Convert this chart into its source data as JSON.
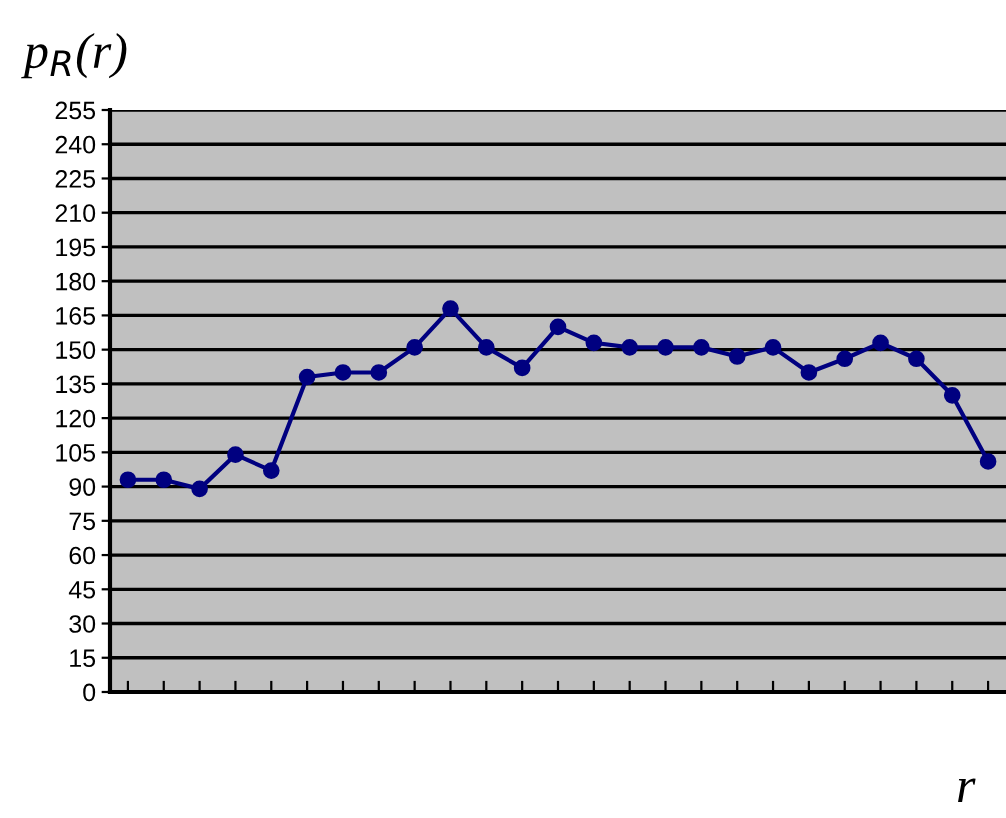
{
  "chart_data": {
    "type": "line",
    "title": "p$_{R}$(r)",
    "xlabel": "r",
    "categories": [
      null,
      null,
      null,
      null,
      null,
      null,
      null,
      null,
      null,
      null,
      null,
      null,
      null,
      null,
      null,
      null,
      null,
      null,
      null,
      null,
      null,
      null,
      null,
      null,
      null
    ],
    "series": [
      {
        "color": "#000080",
        "values": [
          93,
          93,
          89,
          104,
          97,
          138,
          140,
          140,
          151,
          168,
          151,
          142,
          160,
          153,
          151,
          151,
          151,
          147,
          151,
          140,
          146,
          153,
          146,
          130,
          101
        ]
      }
    ],
    "ylim": [
      0,
      255
    ],
    "yticks": [
      0,
      15,
      30,
      45,
      60,
      75,
      90,
      105,
      120,
      135,
      150,
      165,
      180,
      195,
      210,
      225,
      240,
      255
    ],
    "grid": "y",
    "marker": "circle",
    "line_style": "solid",
    "legend": false
  }
}
